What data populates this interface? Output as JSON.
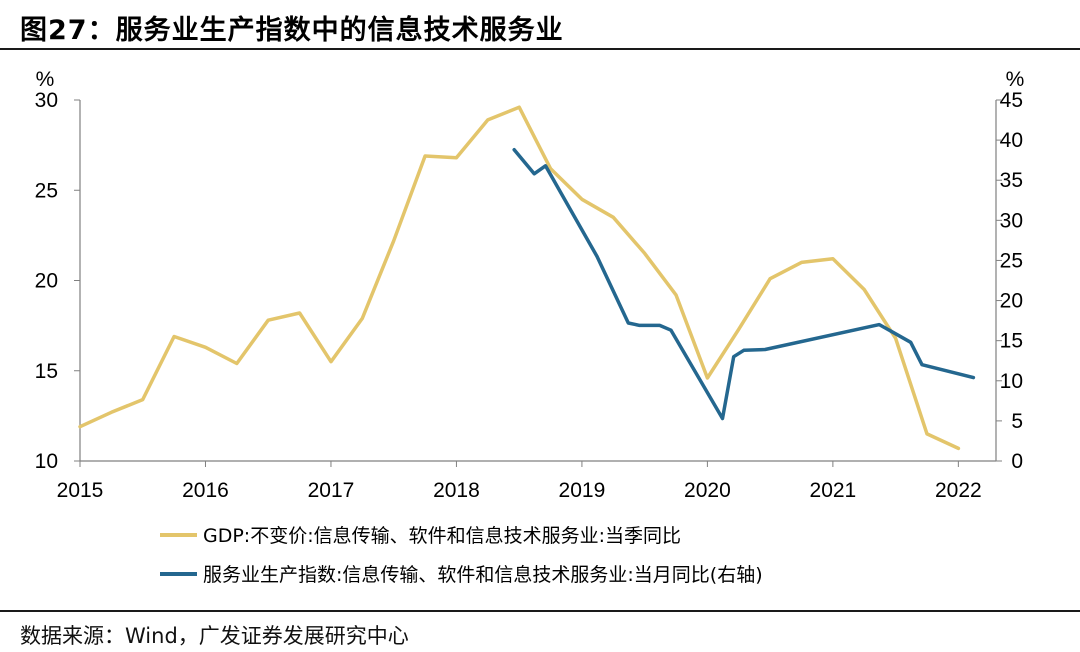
{
  "title": "图27：服务业生产指数中的信息技术服务业",
  "source": "数据来源：Wind，广发证券发展研究中心",
  "colors": {
    "gdp": "#E3C56B",
    "index": "#24678F"
  },
  "chart_data": {
    "type": "line",
    "title": "图27：服务业生产指数中的信息技术服务业",
    "left_axis": {
      "label": "%",
      "ylim": [
        10,
        30
      ],
      "ticks": [
        10,
        15,
        20,
        25,
        30
      ]
    },
    "right_axis": {
      "label": "%",
      "ylim": [
        0,
        45
      ],
      "ticks": [
        0,
        5,
        10,
        15,
        20,
        25,
        30,
        35,
        40,
        45
      ]
    },
    "x_axis": {
      "xlim": [
        2015,
        2022.3
      ],
      "ticks": [
        2015,
        2016,
        2017,
        2018,
        2019,
        2020,
        2021,
        2022
      ],
      "tick_labels": [
        "2015",
        "2016",
        "2017",
        "2018",
        "2019",
        "2020",
        "2021",
        "2022"
      ]
    },
    "series": [
      {
        "name": "GDP:不变价:信息传输、软件和信息技术服务业:当季同比",
        "axis": "left",
        "color": "#E3C56B",
        "x": [
          2015.0,
          2015.25,
          2015.5,
          2015.75,
          2016.0,
          2016.25,
          2016.5,
          2016.75,
          2017.0,
          2017.25,
          2017.5,
          2017.75,
          2018.0,
          2018.25,
          2018.5,
          2018.75,
          2019.0,
          2019.25,
          2019.5,
          2019.75,
          2020.0,
          2020.25,
          2020.5,
          2020.75,
          2021.0,
          2021.25,
          2021.5,
          2021.75,
          2022.0
        ],
        "values": [
          11.9,
          12.7,
          13.4,
          16.9,
          16.3,
          15.4,
          17.8,
          18.2,
          15.5,
          17.9,
          22.2,
          26.9,
          26.8,
          28.9,
          29.6,
          26.2,
          24.5,
          23.5,
          21.5,
          19.2,
          14.6,
          17.3,
          20.1,
          21.0,
          21.2,
          19.5,
          16.8,
          11.5,
          10.7
        ]
      },
      {
        "name": "服务业生产指数:信息传输、软件和信息技术服务业:当月同比(右轴)",
        "axis": "right",
        "color": "#24678F",
        "x": [
          2018.46,
          2018.62,
          2018.71,
          2019.12,
          2019.37,
          2019.46,
          2019.62,
          2019.71,
          2020.12,
          2020.21,
          2020.29,
          2020.46,
          2021.37,
          2021.62,
          2021.71,
          2022.12
        ],
        "values": [
          38.8,
          35.8,
          36.8,
          25.5,
          17.2,
          16.9,
          16.9,
          16.3,
          5.3,
          13.0,
          13.8,
          13.9,
          17.0,
          14.8,
          12.0,
          10.4
        ]
      }
    ]
  }
}
